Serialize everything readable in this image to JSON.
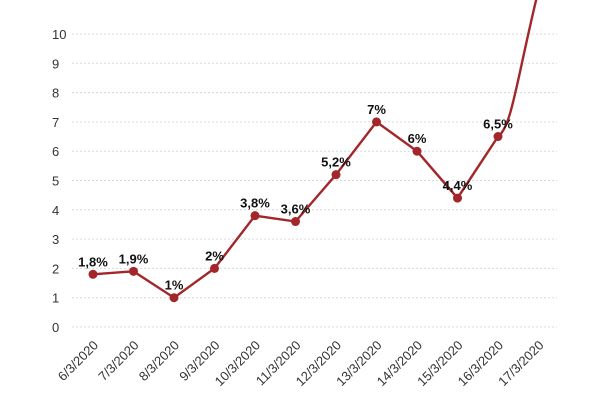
{
  "chart_data": {
    "type": "line",
    "categories": [
      "6/3/2020",
      "7/3/2020",
      "8/3/2020",
      "9/3/2020",
      "10/3/2020",
      "11/3/2020",
      "12/3/2020",
      "13/3/2020",
      "14/3/2020",
      "15/3/2020",
      "16/3/2020",
      "17/3/2020"
    ],
    "values": [
      1.8,
      1.9,
      1.0,
      2.0,
      3.8,
      3.6,
      5.2,
      7.0,
      6.0,
      4.4,
      6.5,
      11.5
    ],
    "data_labels": [
      "1,8%",
      "1,9%",
      "1%",
      "2%",
      "3,8%",
      "3,6%",
      "5,2%",
      "7%",
      "6%",
      "4,4%",
      "6,5%",
      ""
    ],
    "y_ticks": [
      "0",
      "1",
      "2",
      "3",
      "4",
      "5",
      "6",
      "7",
      "8",
      "9",
      "10"
    ],
    "ylim": [
      0,
      11
    ],
    "grid": true,
    "colors": {
      "line": "#a3262a",
      "marker": "#a3262a"
    }
  }
}
